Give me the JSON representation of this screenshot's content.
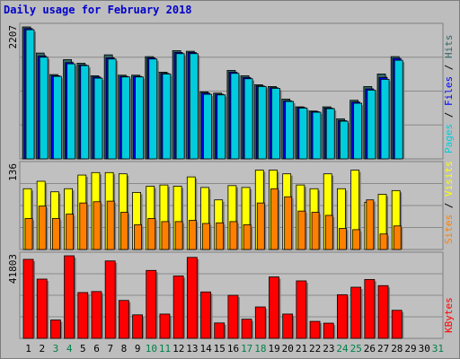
{
  "chart_data": {
    "type": "bar",
    "title": "Daily usage for February 2018",
    "days": [
      "1",
      "2",
      "3",
      "4",
      "5",
      "6",
      "7",
      "8",
      "9",
      "10",
      "11",
      "12",
      "13",
      "14",
      "15",
      "16",
      "17",
      "18",
      "19",
      "20",
      "21",
      "22",
      "23",
      "24",
      "25",
      "26",
      "27",
      "28",
      "29",
      "30",
      "31"
    ],
    "weekend_days": [
      "3",
      "4",
      "10",
      "11",
      "17",
      "18",
      "24",
      "25",
      "31"
    ],
    "panels": [
      {
        "name": "top",
        "max_label": "2207",
        "ymax": 2207,
        "series": [
          {
            "name": "Hits",
            "color": "#336666",
            "values": [
              2207,
              1770,
              1410,
              1660,
              1600,
              1390,
              1740,
              1400,
              1400,
              1710,
              1450,
              1810,
              1800,
              1120,
              1100,
              1480,
              1390,
              1240,
              1210,
              1000,
              870,
              800,
              870,
              670,
              980,
              1210,
              1420,
              1710,
              0,
              0,
              0
            ]
          },
          {
            "name": "Files",
            "color": "#0000ff",
            "values": [
              2180,
              1720,
              1390,
              1610,
              1570,
              1370,
              1690,
              1380,
              1380,
              1690,
              1430,
              1780,
              1780,
              1100,
              1080,
              1450,
              1360,
              1220,
              1190,
              970,
              860,
              790,
              850,
              640,
              950,
              1170,
              1360,
              1680,
              0,
              0,
              0
            ]
          },
          {
            "name": "Pages",
            "color": "#00ccdd",
            "values": [
              2160,
              1700,
              1380,
              1590,
              1560,
              1350,
              1670,
              1370,
              1370,
              1670,
              1420,
              1760,
              1760,
              1080,
              1070,
              1430,
              1340,
              1210,
              1180,
              960,
              850,
              780,
              840,
              630,
              930,
              1150,
              1330,
              1650,
              0,
              0,
              0
            ]
          }
        ]
      },
      {
        "name": "middle",
        "max_label": "136",
        "ymax": 136,
        "series": [
          {
            "name": "Visits",
            "color": "#ffff00",
            "values": [
              98,
              110,
              93,
              98,
              120,
              124,
              124,
              122,
              92,
              102,
              104,
              102,
              117,
              100,
              80,
              103,
              100,
              128,
              128,
              122,
              104,
              98,
              122,
              98,
              128,
              76,
              89,
              95,
              0,
              0,
              0
            ]
          },
          {
            "name": "Sites",
            "color": "#ff8000",
            "values": [
              50,
              70,
              50,
              57,
              75,
              77,
              78,
              60,
              40,
              50,
              45,
              45,
              47,
              42,
              43,
              45,
              40,
              75,
              98,
              85,
              62,
              60,
              55,
              34,
              32,
              80,
              25,
              38,
              0,
              0,
              0
            ]
          }
        ]
      },
      {
        "name": "bottom",
        "max_label": "41803",
        "ymax": 41803,
        "series": [
          {
            "name": "KBytes",
            "color": "#ff0000",
            "values": [
              40000,
              30000,
              9300,
              41803,
              23200,
              23700,
              39200,
              19200,
              11900,
              34400,
              12300,
              31600,
              41000,
              23500,
              7800,
              21800,
              9700,
              15900,
              31100,
              12300,
              29100,
              8600,
              7700,
              22100,
              25900,
              29800,
              26700,
              14200,
              0,
              0,
              0
            ]
          }
        ]
      }
    ],
    "legend_right": {
      "top": [
        {
          "text": "Pages",
          "color": "#00ccdd"
        },
        {
          "text": "Files",
          "color": "#0000ff"
        },
        {
          "text": "Hits",
          "color": "#336666"
        }
      ],
      "middle": [
        {
          "text": "Sites",
          "color": "#ff8000"
        },
        {
          "text": "Visits",
          "color": "#ffff00"
        }
      ],
      "bottom": [
        {
          "text": "KBytes",
          "color": "#ff0000"
        }
      ]
    },
    "separator": " / ",
    "grid": true
  }
}
